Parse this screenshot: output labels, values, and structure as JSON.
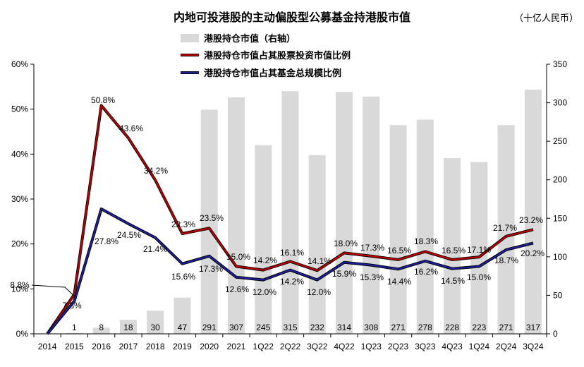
{
  "chart_data": {
    "type": "bar+line",
    "title": "内地可投港股的主动偏股型公募基金持港股市值",
    "unit_label": "（十亿人民币）",
    "categories": [
      "2014",
      "2015",
      "2016",
      "2017",
      "2018",
      "2019",
      "2020",
      "2021",
      "1Q22",
      "2Q22",
      "3Q22",
      "4Q22",
      "1Q23",
      "2Q23",
      "3Q23",
      "4Q23",
      "1Q24",
      "2Q24",
      "3Q24"
    ],
    "left_axis": {
      "ticks": [
        "0%",
        "10%",
        "20%",
        "30%",
        "40%",
        "50%",
        "60%"
      ],
      "ylim": [
        0,
        60
      ]
    },
    "right_axis": {
      "ticks": [
        "0",
        "50",
        "100",
        "150",
        "200",
        "250",
        "300",
        "350"
      ],
      "ylim": [
        0,
        350
      ]
    },
    "series": [
      {
        "name": "港股持仓市值（右轴）",
        "type": "bar",
        "axis": "right",
        "color": "#d9d9d9",
        "values": [
          0,
          1,
          8,
          18,
          30,
          47,
          291,
          307,
          245,
          315,
          232,
          314,
          308,
          271,
          278,
          228,
          223,
          271,
          317
        ],
        "labels": [
          "",
          "1",
          "8",
          "18",
          "30",
          "47",
          "291",
          "307",
          "245",
          "315",
          "232",
          "314",
          "308",
          "271",
          "278",
          "228",
          "223",
          "271",
          "317"
        ]
      },
      {
        "name": "港股持仓市值占其股票投资市值比例",
        "type": "line",
        "axis": "left",
        "color": "#c00000",
        "values": [
          0,
          8.8,
          50.8,
          43.6,
          34.2,
          22.3,
          23.5,
          15.0,
          14.2,
          16.1,
          14.1,
          18.0,
          17.3,
          16.5,
          18.3,
          16.5,
          17.1,
          21.7,
          23.2
        ],
        "labels": [
          "",
          "8.8%",
          "50.8%",
          "43.6%",
          "34.2%",
          "22.3%",
          "23.5%",
          "15.0%",
          "14.2%",
          "16.1%",
          "14.1%",
          "18.0%",
          "17.3%",
          "16.5%",
          "18.3%",
          "16.5%",
          "17.1%",
          "21.7%",
          "23.2%"
        ]
      },
      {
        "name": "港股持仓市值占其基金总规模比例",
        "type": "line",
        "axis": "left",
        "color": "#1f1f99",
        "values": [
          0,
          7.3,
          27.8,
          24.5,
          21.4,
          15.6,
          17.3,
          12.6,
          12.0,
          14.2,
          12.0,
          15.9,
          15.3,
          14.4,
          16.2,
          14.5,
          15.0,
          18.7,
          20.2
        ],
        "labels": [
          "",
          "7.3%",
          "27.8%",
          "24.5%",
          "21.4%",
          "15.6%",
          "17.3%",
          "12.6%",
          "12.0%",
          "14.2%",
          "12.0%",
          "15.9%",
          "15.3%",
          "14.4%",
          "16.2%",
          "14.5%",
          "15.0%",
          "18.7%",
          "20.2%"
        ]
      }
    ]
  }
}
